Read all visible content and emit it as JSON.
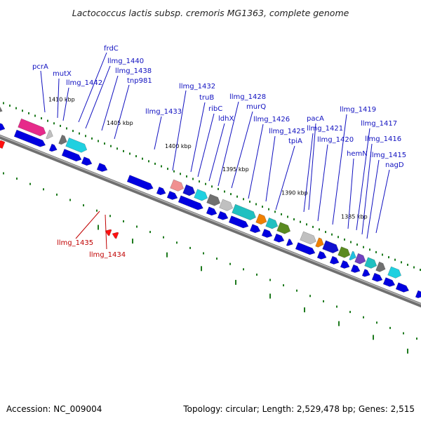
{
  "title": "Lactococcus lactis subsp. cremoris MG1363, complete genome",
  "footer": {
    "accession": "Accession: NC_009004",
    "summary": "Topology: circular; Length: 2,529,478 bp; Genes: 2,515"
  },
  "ruler": [
    "1410 kbp",
    "1405 kbp",
    "1400 kbp",
    "1395 kbp",
    "1390 kbp",
    "1385 kbp"
  ],
  "labels": [
    "pcrA",
    "mutX",
    "frdC",
    "llmg_1440",
    "llmg_1442",
    "llmg_1438",
    "tnp981",
    "llmg_1433",
    "llmg_1432",
    "truB",
    "ribC",
    "ldhX",
    "llmg_1428",
    "murQ",
    "llmg_1426",
    "llmg_1425",
    "tpiA",
    "pacA",
    "llmg_1421",
    "llmg_1420",
    "llmg_1419",
    "llmg_1417",
    "hemN",
    "llmg_1416",
    "llmg_1415",
    "nagD",
    "llmg_1435",
    "llmg_1434"
  ],
  "colors": {
    "label_blue": "#1010c0",
    "label_red": "#c00000",
    "gene_blue": "#0000e0",
    "tick_green": "#1e7a1e",
    "backbone": "#707070"
  }
}
